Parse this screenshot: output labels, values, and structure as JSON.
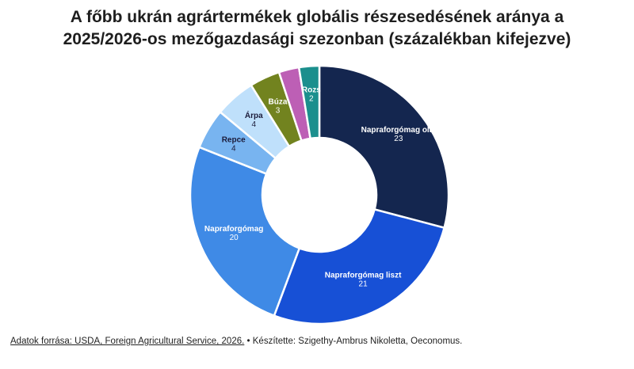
{
  "title_line1": "A főbb ukrán agrártermékek globális részesedésének aránya a",
  "title_line2": "2025/2026-os mezőgazdasági szezonban (százalékban kifejezve)",
  "footer": {
    "source": "Adatok forrása: USDA, Foreign Agricultural Service, 2026.",
    "credit": "Készítette: Szigethy-Ambrus Nikoletta, Oeconomus."
  },
  "chart_data": {
    "type": "pie",
    "donut": true,
    "title": "A főbb ukrán agrártermékek globális részesedésének aránya a 2025/2026-os mezőgazdasági szezonban (százalékban kifejezve)",
    "slices": [
      {
        "label": "Napraforgómag olaj",
        "value": 23,
        "color": "#14264f",
        "label_color": "#ffffff"
      },
      {
        "label": "Napraforgómag liszt",
        "value": 21,
        "color": "#1750d6",
        "label_color": "#ffffff"
      },
      {
        "label": "Napraforgómag",
        "value": 20,
        "color": "#3f8ae6",
        "label_color": "#ffffff"
      },
      {
        "label": "Repce",
        "value": 4,
        "color": "#78b4f0",
        "label_color": "#1b1b3a"
      },
      {
        "label": "Árpa",
        "value": 4,
        "color": "#bfe0fb",
        "label_color": "#1b1b3a"
      },
      {
        "label": "Búza",
        "value": 3,
        "color": "#72831f",
        "label_color": "#ffffff"
      },
      {
        "label": "",
        "value": 2,
        "color": "#bd5fb5",
        "label_color": "#ffffff"
      },
      {
        "label": "Rozs",
        "value": 2,
        "color": "#1b8f8d",
        "label_color": "#ffffff"
      }
    ]
  }
}
